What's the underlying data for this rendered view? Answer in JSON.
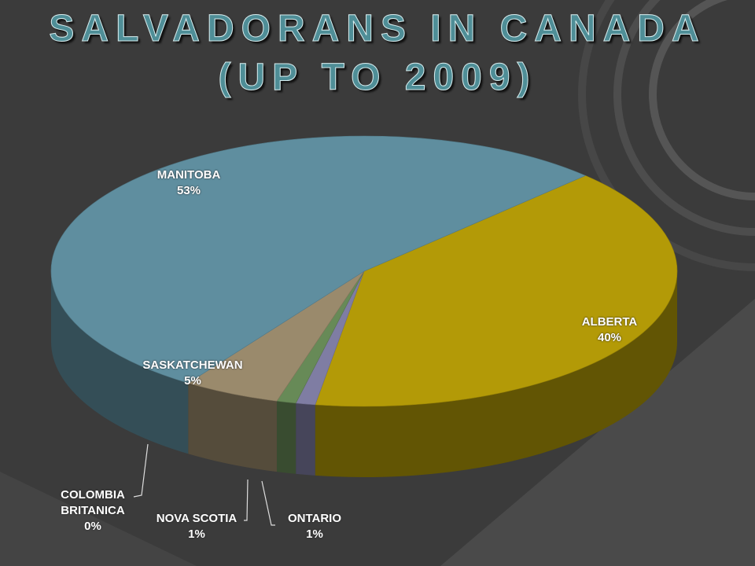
{
  "chart_data": {
    "type": "pie3d",
    "title": "SALVADORANS IN CANADA (UP TO 2009)",
    "categories": [
      "ALBERTA",
      "ONTARIO",
      "NOVA SCOTIA",
      "SASKATCHEWAN",
      "COLOMBIA BRITANICA",
      "MANITOBA"
    ],
    "values": [
      40,
      1,
      1,
      5,
      0,
      53
    ],
    "value_labels": [
      "40%",
      "1%",
      "1%",
      "5%",
      "0%",
      "53%"
    ],
    "colors": [
      "#b39a07",
      "#7f7da3",
      "#678a57",
      "#9a8a6c",
      "#8fa7b8",
      "#5f8e9f"
    ]
  }
}
